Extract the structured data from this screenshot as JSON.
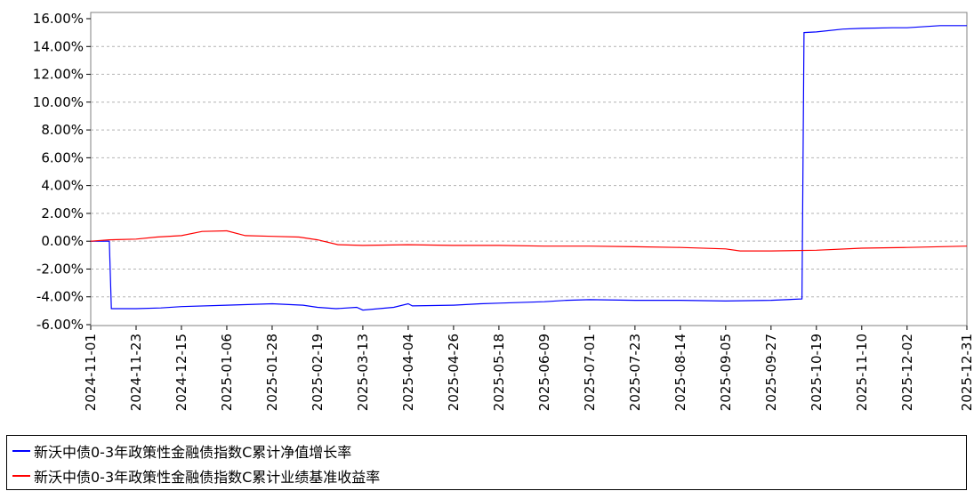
{
  "chart_data": {
    "type": "line",
    "x_ticks": [
      "2024-11-01",
      "2024-11-23",
      "2024-12-15",
      "2025-01-06",
      "2025-01-28",
      "2025-02-19",
      "2025-03-13",
      "2025-04-04",
      "2025-04-26",
      "2025-05-18",
      "2025-06-09",
      "2025-07-01",
      "2025-07-23",
      "2025-08-14",
      "2025-09-05",
      "2025-09-27",
      "2025-10-19",
      "2025-11-10",
      "2025-12-02",
      "2025-12-31"
    ],
    "y_ticks": [
      "16.00%",
      "14.00%",
      "12.00%",
      "10.00%",
      "8.00%",
      "6.00%",
      "4.00%",
      "2.00%",
      "0.00%",
      "-2.00%",
      "-4.00%",
      "-6.00%"
    ],
    "ylim": [
      -6,
      16
    ],
    "xlim": [
      "2024-11-01",
      "2025-12-31"
    ],
    "grid": true,
    "legend_position": "bottom",
    "series": [
      {
        "name": "新沃中债0-3年政策性金融债指数C累计净值增长率",
        "color": "#0000ff",
        "points": [
          [
            "2024-11-01",
            0.0
          ],
          [
            "2024-11-10",
            0.0
          ],
          [
            "2024-11-11",
            -4.85
          ],
          [
            "2024-11-23",
            -4.85
          ],
          [
            "2024-12-05",
            -4.8
          ],
          [
            "2024-12-15",
            -4.7
          ],
          [
            "2025-01-06",
            -4.6
          ],
          [
            "2025-01-28",
            -4.5
          ],
          [
            "2025-02-12",
            -4.6
          ],
          [
            "2025-02-19",
            -4.75
          ],
          [
            "2025-02-28",
            -4.85
          ],
          [
            "2025-03-10",
            -4.75
          ],
          [
            "2025-03-13",
            -4.95
          ],
          [
            "2025-03-28",
            -4.75
          ],
          [
            "2025-04-04",
            -4.5
          ],
          [
            "2025-04-06",
            -4.65
          ],
          [
            "2025-04-26",
            -4.6
          ],
          [
            "2025-05-09",
            -4.5
          ],
          [
            "2025-05-18",
            -4.45
          ],
          [
            "2025-06-09",
            -4.35
          ],
          [
            "2025-06-20",
            -4.25
          ],
          [
            "2025-07-01",
            -4.2
          ],
          [
            "2025-07-23",
            -4.25
          ],
          [
            "2025-08-14",
            -4.25
          ],
          [
            "2025-09-05",
            -4.3
          ],
          [
            "2025-09-27",
            -4.25
          ],
          [
            "2025-10-12",
            -4.15
          ],
          [
            "2025-10-13",
            15.0
          ],
          [
            "2025-10-19",
            15.05
          ],
          [
            "2025-11-01",
            15.25
          ],
          [
            "2025-11-10",
            15.3
          ],
          [
            "2025-11-25",
            15.35
          ],
          [
            "2025-12-02",
            15.35
          ],
          [
            "2025-12-18",
            15.5
          ],
          [
            "2025-12-31",
            15.5
          ]
        ]
      },
      {
        "name": "新沃中债0-3年政策性金融债指数C累计业绩基准收益率",
        "color": "#ff0000",
        "points": [
          [
            "2024-11-01",
            0.0
          ],
          [
            "2024-11-10",
            0.1
          ],
          [
            "2024-11-23",
            0.15
          ],
          [
            "2024-12-03",
            0.3
          ],
          [
            "2024-12-15",
            0.4
          ],
          [
            "2024-12-25",
            0.7
          ],
          [
            "2025-01-06",
            0.75
          ],
          [
            "2025-01-15",
            0.4
          ],
          [
            "2025-01-28",
            0.35
          ],
          [
            "2025-02-10",
            0.3
          ],
          [
            "2025-02-19",
            0.1
          ],
          [
            "2025-03-01",
            -0.25
          ],
          [
            "2025-03-13",
            -0.3
          ],
          [
            "2025-04-04",
            -0.25
          ],
          [
            "2025-04-26",
            -0.3
          ],
          [
            "2025-05-18",
            -0.3
          ],
          [
            "2025-06-09",
            -0.35
          ],
          [
            "2025-07-01",
            -0.35
          ],
          [
            "2025-07-23",
            -0.4
          ],
          [
            "2025-08-14",
            -0.45
          ],
          [
            "2025-09-05",
            -0.55
          ],
          [
            "2025-09-12",
            -0.7
          ],
          [
            "2025-09-27",
            -0.7
          ],
          [
            "2025-10-19",
            -0.65
          ],
          [
            "2025-11-10",
            -0.5
          ],
          [
            "2025-12-02",
            -0.45
          ],
          [
            "2025-12-31",
            -0.35
          ]
        ]
      }
    ]
  }
}
